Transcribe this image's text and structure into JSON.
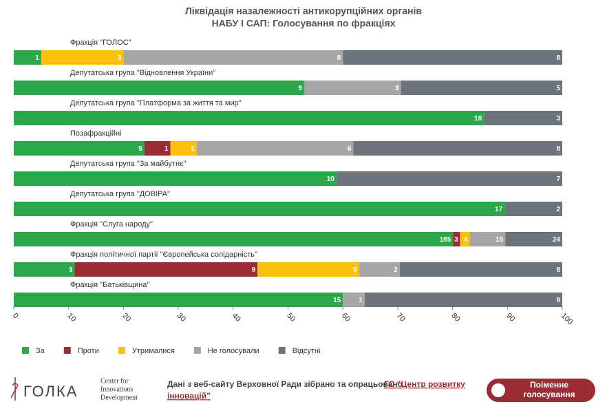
{
  "chart_data": {
    "type": "bar",
    "orientation": "horizontal",
    "stacked": true,
    "normalize": true,
    "title": [
      "Ліквідація назалежності антикорупційних органів",
      "НАБУ І САП: Голосування по фракціях"
    ],
    "categories": [
      "Фракція \"ГОЛОС\"",
      "Депутатська група \"Відновлення України\"",
      "Депутатська група \"Платформа за життя та мир\"",
      "Позафракційні",
      "Депутатська група \"За майбутнє\"",
      "Депутатська група \"ДОВІРА\"",
      "Фракція \"Слуга народу\"",
      "Фракція політичної партії \"Європейська солідарність\"",
      "Фракція \"Батьківщина\""
    ],
    "series": [
      {
        "name": "За",
        "color": "#2aa84a",
        "values": [
          1,
          9,
          18,
          5,
          10,
          17,
          185,
          3,
          15
        ]
      },
      {
        "name": "Проти",
        "color": "#9b2c36",
        "values": [
          0,
          0,
          0,
          1,
          0,
          0,
          3,
          9,
          0
        ]
      },
      {
        "name": "Утрималися",
        "color": "#fcc10e",
        "values": [
          3,
          0,
          0,
          1,
          0,
          0,
          4,
          5,
          0
        ]
      },
      {
        "name": "Не голосували",
        "color": "#a6a6a6",
        "values": [
          8,
          3,
          0,
          6,
          0,
          0,
          15,
          2,
          1
        ]
      },
      {
        "name": "Відсутні",
        "color": "#6c747d",
        "values": [
          8,
          5,
          3,
          8,
          7,
          2,
          24,
          8,
          9
        ]
      }
    ],
    "xlim": [
      0,
      100
    ],
    "xticks": [
      0,
      10,
      20,
      30,
      40,
      50,
      60,
      70,
      80,
      90,
      100
    ],
    "legend": "bottom-left"
  },
  "footer": {
    "logo": "ГОЛКА",
    "partner": [
      "Center for",
      "Innovations",
      "Development"
    ],
    "source": "Дані з веб-сайту Верховної Ради зібрано та опрацьовано",
    "source_link": [
      "ГС “Центр розвитку",
      "інновацій”"
    ],
    "button": [
      "Поіменне",
      "голосування"
    ]
  }
}
